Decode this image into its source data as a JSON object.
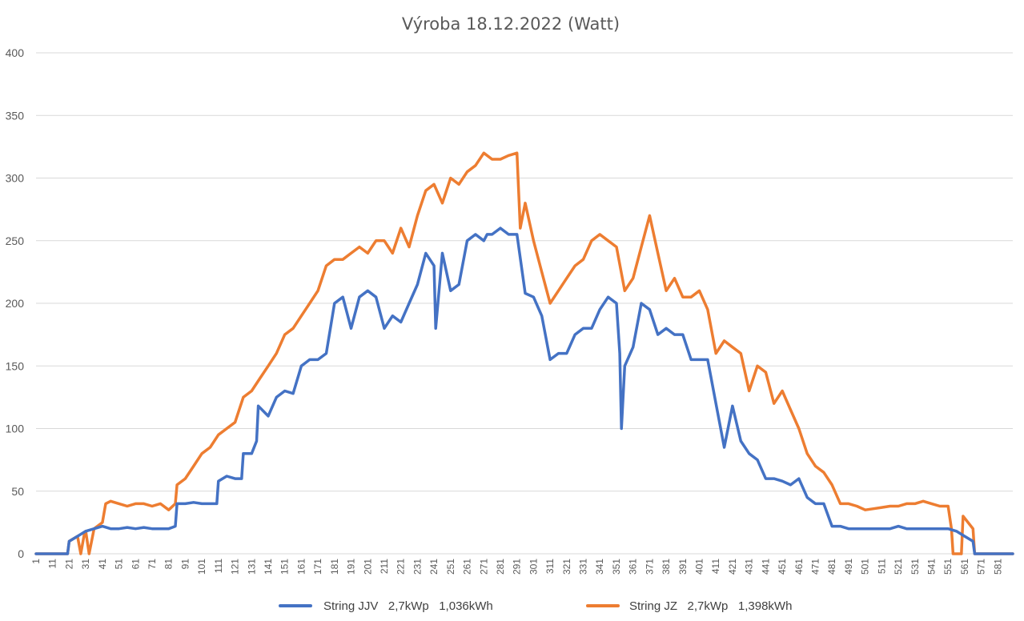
{
  "chart_data": {
    "type": "line",
    "title": "Výroba 18.12.2022 (Watt)",
    "xlabel": "",
    "ylabel": "",
    "ylim": [
      0,
      400
    ],
    "yticks": [
      "0",
      "50",
      "100",
      "150",
      "200",
      "250",
      "300",
      "350",
      "400"
    ],
    "xlim": [
      1,
      590
    ],
    "xticks": [
      "1",
      "11",
      "21",
      "31",
      "41",
      "51",
      "61",
      "71",
      "81",
      "91",
      "101",
      "111",
      "121",
      "131",
      "141",
      "151",
      "161",
      "171",
      "181",
      "191",
      "201",
      "211",
      "221",
      "231",
      "241",
      "251",
      "261",
      "271",
      "281",
      "291",
      "301",
      "311",
      "321",
      "331",
      "341",
      "351",
      "361",
      "371",
      "381",
      "391",
      "401",
      "411",
      "421",
      "431",
      "441",
      "451",
      "461",
      "471",
      "481",
      "491",
      "501",
      "511",
      "521",
      "531",
      "541",
      "551",
      "561",
      "571",
      "581"
    ],
    "legend": "bottom",
    "series": [
      {
        "name": "String JJV   2,7kWp   1,036kWh",
        "color": "#4472c4",
        "x": [
          1,
          20,
          21,
          26,
          31,
          36,
          41,
          46,
          51,
          56,
          61,
          66,
          71,
          76,
          81,
          85,
          86,
          91,
          96,
          101,
          106,
          110,
          111,
          116,
          121,
          125,
          126,
          131,
          134,
          135,
          141,
          146,
          151,
          156,
          161,
          166,
          171,
          176,
          181,
          186,
          191,
          196,
          201,
          206,
          211,
          216,
          221,
          226,
          231,
          236,
          241,
          242,
          246,
          251,
          256,
          261,
          266,
          271,
          273,
          276,
          281,
          286,
          291,
          296,
          301,
          306,
          311,
          316,
          321,
          326,
          331,
          336,
          341,
          346,
          351,
          353,
          354,
          356,
          361,
          366,
          371,
          376,
          381,
          386,
          391,
          396,
          401,
          406,
          411,
          416,
          421,
          426,
          431,
          436,
          441,
          446,
          451,
          456,
          461,
          466,
          471,
          476,
          481,
          486,
          491,
          496,
          501,
          506,
          511,
          516,
          521,
          526,
          531,
          536,
          541,
          546,
          551,
          556,
          561,
          566,
          567,
          571,
          581,
          590
        ],
        "y": [
          0,
          0,
          10,
          14,
          18,
          20,
          22,
          20,
          20,
          21,
          20,
          21,
          20,
          20,
          20,
          22,
          40,
          40,
          41,
          40,
          40,
          40,
          58,
          62,
          60,
          60,
          80,
          80,
          90,
          118,
          110,
          125,
          130,
          128,
          150,
          155,
          155,
          160,
          200,
          205,
          180,
          205,
          210,
          205,
          180,
          190,
          185,
          200,
          215,
          240,
          230,
          180,
          240,
          210,
          215,
          250,
          255,
          250,
          255,
          255,
          260,
          255,
          255,
          208,
          205,
          190,
          155,
          160,
          160,
          175,
          180,
          180,
          195,
          205,
          200,
          160,
          100,
          150,
          165,
          200,
          195,
          175,
          180,
          175,
          175,
          155,
          155,
          155,
          120,
          85,
          118,
          90,
          80,
          75,
          60,
          60,
          58,
          55,
          60,
          45,
          40,
          40,
          22,
          22,
          20,
          20,
          20,
          20,
          20,
          20,
          22,
          20,
          20,
          20,
          20,
          20,
          20,
          18,
          14,
          10,
          0,
          0,
          0,
          0
        ]
      },
      {
        "name": "String JZ   2,7kWp   1,398kWh",
        "color": "#ed7d31",
        "x": [
          1,
          20,
          21,
          26,
          28,
          30,
          31,
          33,
          36,
          41,
          43,
          46,
          51,
          56,
          61,
          66,
          71,
          76,
          81,
          85,
          86,
          91,
          96,
          101,
          106,
          111,
          116,
          121,
          126,
          131,
          136,
          141,
          146,
          151,
          156,
          161,
          166,
          171,
          176,
          181,
          186,
          191,
          196,
          201,
          206,
          211,
          216,
          221,
          226,
          231,
          236,
          241,
          246,
          251,
          256,
          261,
          266,
          271,
          276,
          281,
          286,
          291,
          293,
          296,
          301,
          306,
          311,
          316,
          321,
          326,
          331,
          336,
          341,
          346,
          351,
          356,
          361,
          366,
          371,
          376,
          381,
          386,
          391,
          396,
          401,
          406,
          411,
          416,
          421,
          426,
          431,
          436,
          441,
          446,
          451,
          456,
          461,
          466,
          471,
          476,
          481,
          486,
          491,
          496,
          501,
          506,
          511,
          516,
          521,
          526,
          531,
          536,
          541,
          546,
          551,
          553,
          554,
          559,
          560,
          566,
          567,
          571,
          581,
          590
        ],
        "y": [
          0,
          0,
          10,
          14,
          0,
          15,
          18,
          0,
          20,
          25,
          40,
          42,
          40,
          38,
          40,
          40,
          38,
          40,
          35,
          40,
          55,
          60,
          70,
          80,
          85,
          95,
          100,
          105,
          125,
          130,
          140,
          150,
          160,
          175,
          180,
          190,
          200,
          210,
          230,
          235,
          235,
          240,
          245,
          240,
          250,
          250,
          240,
          260,
          245,
          270,
          290,
          295,
          280,
          300,
          295,
          305,
          310,
          320,
          315,
          315,
          318,
          320,
          260,
          280,
          250,
          225,
          200,
          210,
          220,
          230,
          235,
          250,
          255,
          250,
          245,
          210,
          220,
          245,
          270,
          240,
          210,
          220,
          205,
          205,
          210,
          195,
          160,
          170,
          165,
          160,
          130,
          150,
          145,
          120,
          130,
          115,
          100,
          80,
          70,
          65,
          55,
          40,
          40,
          38,
          35,
          36,
          37,
          38,
          38,
          40,
          40,
          42,
          40,
          38,
          38,
          20,
          0,
          0,
          30,
          20,
          0,
          0,
          0,
          0
        ]
      }
    ]
  }
}
